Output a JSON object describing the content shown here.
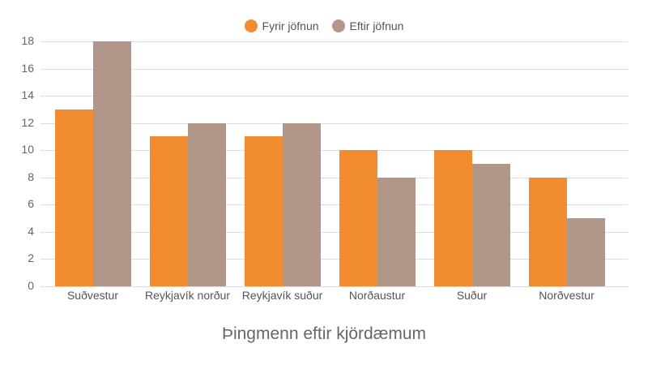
{
  "chart_data": {
    "type": "bar",
    "title": "Þingmenn eftir kjördæmum",
    "xlabel": "",
    "ylabel": "",
    "ylim": [
      0,
      18
    ],
    "yticks": [
      0,
      2,
      4,
      6,
      8,
      10,
      12,
      14,
      16,
      18
    ],
    "grid": true,
    "legend_position": "top",
    "categories": [
      "Suðvestur",
      "Reykjavík norður",
      "Reykjavík suður",
      "Norðaustur",
      "Suður",
      "Norðvestur"
    ],
    "series": [
      {
        "name": "Fyrir jöfnun",
        "color": "#f28c30",
        "values": [
          13,
          11,
          11,
          10,
          10,
          8
        ]
      },
      {
        "name": "Eftir jöfnun",
        "color": "#b0978a",
        "values": [
          18,
          12,
          12,
          8,
          9,
          5
        ]
      }
    ]
  }
}
